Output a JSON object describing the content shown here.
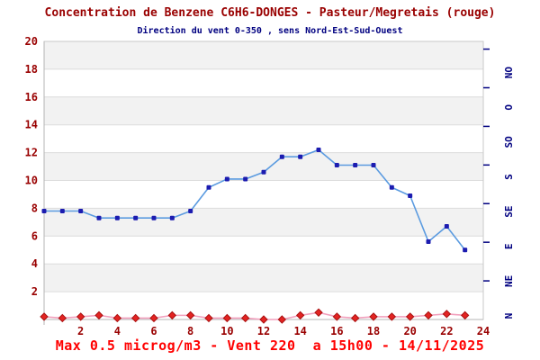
{
  "title": "Concentration de Benzene C6H6-DONGES - Pasteur/Megretais (rouge)",
  "subtitle": "Direction du vent 0-350 , sens Nord-Est-Sud-Ouest",
  "footer": "Max 0.5 microg/m3 - Vent 220  a 15h00 - 14/11/2025",
  "colors": {
    "title_text": "#990000",
    "subtitle_text": "#000080",
    "axis_label_text": "#990000",
    "right_axis_text": "#000080",
    "footer_text": "#ff0000",
    "band_gray": "#f2f2f2",
    "band_white": "#ffffff",
    "gridline": "#dcdcdc",
    "plot_border": "#c9c9c9",
    "axis_line": "#b4b4b4"
  },
  "chart_data": {
    "type": "line",
    "x_hours": [
      0,
      1,
      2,
      3,
      4,
      5,
      6,
      7,
      8,
      9,
      10,
      11,
      12,
      13,
      14,
      15,
      16,
      17,
      18,
      19,
      20,
      21,
      22,
      23
    ],
    "xlim": [
      0,
      24
    ],
    "ylim": [
      0,
      20
    ],
    "yticks": [
      2,
      4,
      6,
      8,
      10,
      12,
      14,
      16,
      18,
      20
    ],
    "xticks": [
      2,
      4,
      6,
      8,
      10,
      12,
      14,
      16,
      18,
      20,
      22,
      24
    ],
    "grid": "horizontal-bands-alternating",
    "legend": "none",
    "series": [
      {
        "name": "Direction du vent",
        "marker": "square",
        "line_color": "#5b9be0",
        "marker_color": "#1c1cb0",
        "values": [
          7.8,
          7.8,
          7.8,
          7.3,
          7.3,
          7.3,
          7.3,
          7.3,
          7.8,
          9.5,
          10.1,
          10.1,
          10.6,
          11.7,
          11.7,
          12.2,
          11.1,
          11.1,
          11.1,
          9.5,
          8.9,
          5.6,
          6.7,
          5.0
        ],
        "values_degrees": [
          140,
          140,
          140,
          131,
          131,
          131,
          131,
          131,
          140,
          171,
          182,
          182,
          191,
          211,
          211,
          220,
          200,
          200,
          200,
          171,
          160,
          101,
          121,
          90
        ]
      },
      {
        "name": "Benzene C6H6 (rouge)",
        "marker": "diamond",
        "line_color": "#f2a0bd",
        "marker_color": "#e32422",
        "marker_edge_color": "#a81111",
        "values": [
          0.2,
          0.1,
          0.2,
          0.3,
          0.1,
          0.1,
          0.1,
          0.3,
          0.3,
          0.1,
          0.1,
          0.1,
          0.0,
          0.0,
          0.3,
          0.5,
          0.2,
          0.1,
          0.2,
          0.2,
          0.2,
          0.3,
          0.4,
          0.3
        ]
      }
    ],
    "right_axis": {
      "meaning": "direction du vent",
      "range_degrees": [
        0,
        360
      ],
      "tick_degrees": [
        50,
        100,
        150,
        200,
        250,
        300,
        350
      ],
      "labels": [
        {
          "label": "N",
          "deg": 0
        },
        {
          "label": "NE",
          "deg": 45
        },
        {
          "label": "E",
          "deg": 90
        },
        {
          "label": "SE",
          "deg": 135
        },
        {
          "label": "S",
          "deg": 180
        },
        {
          "label": "SO",
          "deg": 225
        },
        {
          "label": "O",
          "deg": 270
        },
        {
          "label": "NO",
          "deg": 315
        }
      ]
    }
  }
}
